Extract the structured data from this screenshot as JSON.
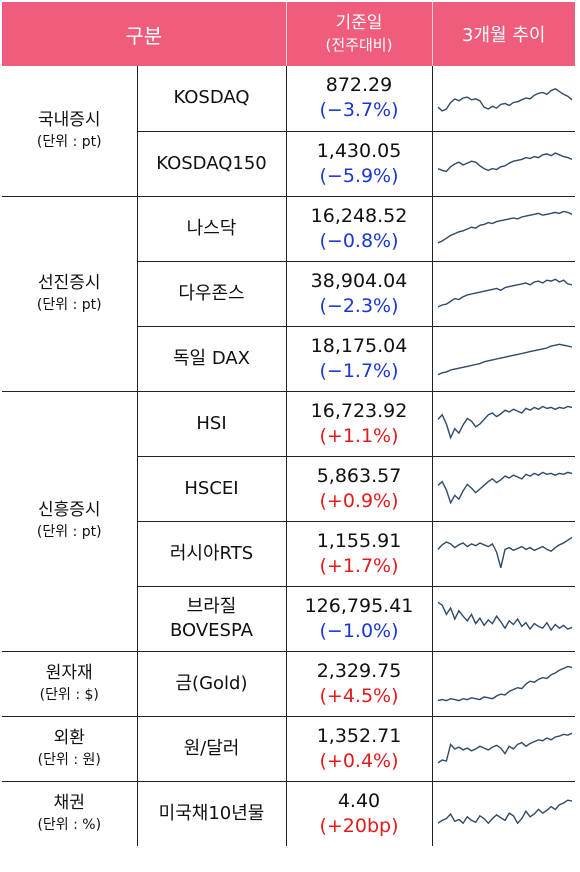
{
  "header": {
    "col_category": "구분",
    "col_value": "기준일",
    "col_value_sub": "(전주대비)",
    "col_trend": "3개월 추이"
  },
  "groups": [
    {
      "name": "국내증시",
      "unit": "(단위 : pt)",
      "rows": [
        {
          "name": "KOSDAQ",
          "value": "872.29",
          "change": "(−3.7%)",
          "dir": "neg",
          "trend": [
            30,
            22,
            26,
            40,
            48,
            44,
            50,
            52,
            46,
            48,
            44,
            30,
            26,
            32,
            28,
            36,
            38,
            34,
            40,
            42,
            46,
            50,
            48,
            56,
            60,
            62,
            58,
            66,
            70,
            64,
            58,
            54,
            46
          ]
        },
        {
          "name": "KOSDAQ150",
          "value": "1,430.05",
          "change": "(−5.9%)",
          "dir": "neg",
          "trend": [
            40,
            36,
            34,
            44,
            50,
            54,
            48,
            52,
            56,
            54,
            46,
            40,
            36,
            40,
            38,
            44,
            46,
            52,
            56,
            58,
            60,
            64,
            62,
            66,
            64,
            70,
            72,
            68,
            74,
            70,
            66,
            64,
            60
          ]
        }
      ]
    },
    {
      "name": "선진증시",
      "unit": "(단위 : pt)",
      "rows": [
        {
          "name": "나스닥",
          "value": "16,248.52",
          "change": "(−0.8%)",
          "dir": "neg",
          "trend": [
            20,
            24,
            30,
            36,
            40,
            44,
            46,
            50,
            54,
            52,
            58,
            60,
            64,
            62,
            66,
            68,
            70,
            72,
            74,
            72,
            76,
            78,
            80,
            82,
            84,
            80,
            82,
            84,
            86,
            84,
            88,
            86,
            82
          ]
        },
        {
          "name": "다우존스",
          "value": "38,904.04",
          "change": "(−2.3%)",
          "dir": "neg",
          "trend": [
            22,
            26,
            28,
            34,
            40,
            38,
            44,
            48,
            50,
            52,
            54,
            56,
            58,
            60,
            62,
            58,
            64,
            66,
            68,
            70,
            72,
            74,
            70,
            76,
            78,
            74,
            80,
            78,
            82,
            76,
            80,
            72,
            70
          ]
        },
        {
          "name": "독일 DAX",
          "value": "18,175.04",
          "change": "(−1.7%)",
          "dir": "neg",
          "trend": [
            16,
            20,
            22,
            26,
            28,
            30,
            32,
            34,
            36,
            38,
            40,
            44,
            46,
            48,
            50,
            52,
            54,
            56,
            58,
            60,
            62,
            64,
            66,
            68,
            70,
            72,
            74,
            78,
            80,
            82,
            80,
            78,
            76
          ]
        }
      ]
    },
    {
      "name": "신흥증시",
      "unit": "(단위 : pt)",
      "rows": [
        {
          "name": "HSI",
          "value": "16,723.92",
          "change": "(+1.1%)",
          "dir": "pos",
          "trend": [
            60,
            70,
            50,
            20,
            40,
            30,
            48,
            62,
            56,
            44,
            50,
            60,
            70,
            74,
            66,
            72,
            80,
            76,
            82,
            78,
            74,
            84,
            80,
            86,
            82,
            88,
            84,
            86,
            82,
            86,
            84,
            88,
            86
          ]
        },
        {
          "name": "HSCEI",
          "value": "5,863.57",
          "change": "(+0.9%)",
          "dir": "pos",
          "trend": [
            58,
            66,
            48,
            20,
            36,
            28,
            46,
            60,
            52,
            42,
            50,
            58,
            66,
            72,
            64,
            70,
            78,
            74,
            80,
            76,
            72,
            82,
            78,
            84,
            80,
            86,
            82,
            84,
            80,
            84,
            82,
            86,
            84
          ]
        },
        {
          "name": "러시아RTS",
          "value": "1,155.91",
          "change": "(+1.7%)",
          "dir": "pos",
          "trend": [
            60,
            70,
            76,
            72,
            64,
            70,
            74,
            66,
            72,
            68,
            74,
            70,
            66,
            72,
            54,
            20,
            60,
            64,
            58,
            62,
            66,
            60,
            64,
            58,
            62,
            66,
            60,
            56,
            64,
            70,
            74,
            80,
            86
          ]
        },
        {
          "name": "브라질\nBOVESPA",
          "value": "126,795.41",
          "change": "(−1.0%)",
          "dir": "neg",
          "trend": [
            86,
            80,
            60,
            74,
            50,
            68,
            56,
            46,
            60,
            40,
            52,
            36,
            48,
            40,
            56,
            44,
            30,
            46,
            38,
            50,
            34,
            42,
            28,
            40,
            34,
            30,
            42,
            26,
            38,
            30,
            36,
            28,
            32
          ]
        }
      ]
    },
    {
      "name": "원자재",
      "unit": "(단위 : $)",
      "rows": [
        {
          "name": "금(Gold)",
          "value": "2,329.75",
          "change": "(+4.5%)",
          "dir": "pos",
          "trend": [
            14,
            16,
            14,
            18,
            16,
            14,
            18,
            16,
            20,
            18,
            16,
            22,
            20,
            18,
            24,
            28,
            26,
            34,
            38,
            42,
            40,
            50,
            56,
            54,
            60,
            64,
            62,
            70,
            74,
            80,
            84,
            88,
            86
          ]
        }
      ]
    },
    {
      "name": "외환",
      "unit": "(단위 : 원)",
      "rows": [
        {
          "name": "원/달러",
          "value": "1,352.71",
          "change": "(+0.4%)",
          "dir": "pos",
          "trend": [
            20,
            26,
            24,
            60,
            50,
            54,
            48,
            52,
            46,
            50,
            56,
            52,
            48,
            54,
            58,
            52,
            40,
            56,
            50,
            60,
            64,
            56,
            62,
            66,
            70,
            68,
            74,
            70,
            76,
            78,
            82,
            80,
            84
          ]
        }
      ]
    },
    {
      "name": "채권",
      "unit": "(단위 : %)",
      "rows": [
        {
          "name": "미국채10년물",
          "value": "4.40",
          "change": "(+20bp)",
          "dir": "pos",
          "trend": [
            30,
            36,
            40,
            50,
            34,
            38,
            30,
            44,
            36,
            32,
            46,
            40,
            30,
            40,
            48,
            42,
            36,
            52,
            46,
            30,
            40,
            56,
            44,
            50,
            60,
            52,
            58,
            66,
            60,
            70,
            74,
            80,
            78
          ]
        }
      ]
    }
  ],
  "colors": {
    "header_bg": "#ef5c7c",
    "neg": "#1a35d6",
    "pos": "#e21b1b",
    "sparkline": "#2f4a68"
  }
}
